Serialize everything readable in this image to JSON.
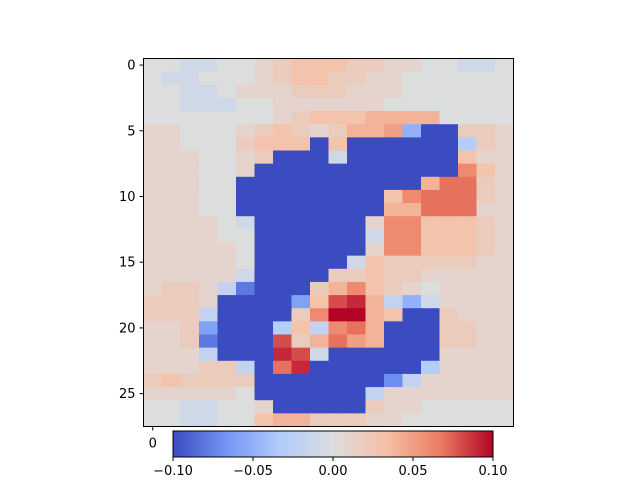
{
  "chart_data": {
    "type": "heatmap",
    "title": "",
    "xlabel": "",
    "ylabel": "",
    "grid": false,
    "rows": 28,
    "cols": 20,
    "y_ticks": [
      0,
      5,
      10,
      15,
      20,
      25
    ],
    "y_tick_labels": [
      "0",
      "5",
      "10",
      "15",
      "20",
      "25"
    ],
    "x_ticks": [
      0
    ],
    "x_tick_labels": [
      "0"
    ],
    "colormap": {
      "name": "coolwarm",
      "vmin": -0.1,
      "vmax": 0.1,
      "stops": [
        "#3b4cc0",
        "#7396f5",
        "#b0cbfc",
        "#dcdddd",
        "#f5c0a6",
        "#eb7d62",
        "#b40426"
      ]
    },
    "colorbar": {
      "orientation": "horizontal",
      "ticks": [
        -0.1,
        -0.05,
        0.0,
        0.05,
        0.1
      ],
      "tick_labels": [
        "−0.10",
        "−0.05",
        "0.00",
        "0.05",
        "0.10"
      ]
    },
    "grid_values": [
      [
        0.0,
        0.0,
        -0.01,
        -0.01,
        0.0,
        0.0,
        0.01,
        0.02,
        0.03,
        0.03,
        0.03,
        0.02,
        0.02,
        0.01,
        0.01,
        0.0,
        0.0,
        -0.01,
        -0.01,
        0.0
      ],
      [
        0.0,
        -0.01,
        -0.01,
        0.0,
        0.0,
        0.0,
        0.01,
        0.02,
        0.03,
        0.03,
        0.02,
        0.02,
        0.01,
        0.01,
        0.0,
        0.0,
        0.0,
        0.0,
        0.0,
        0.0
      ],
      [
        0.0,
        0.0,
        -0.01,
        -0.01,
        0.0,
        0.01,
        0.01,
        0.01,
        0.02,
        0.02,
        0.02,
        0.01,
        0.01,
        0.01,
        0.0,
        0.0,
        0.0,
        0.0,
        0.0,
        0.0
      ],
      [
        0.0,
        0.0,
        -0.01,
        -0.01,
        -0.01,
        0.0,
        0.0,
        0.01,
        0.01,
        0.01,
        0.01,
        0.01,
        0.01,
        0.0,
        0.0,
        0.0,
        0.0,
        0.0,
        0.0,
        0.0
      ],
      [
        0.0,
        0.0,
        0.0,
        0.0,
        0.0,
        0.0,
        0.0,
        0.01,
        0.02,
        0.03,
        0.03,
        0.03,
        0.04,
        0.04,
        0.04,
        0.04,
        0.0,
        0.0,
        0.0,
        0.0
      ],
      [
        0.01,
        0.01,
        0.0,
        0.0,
        0.0,
        0.01,
        0.02,
        0.03,
        0.02,
        0.01,
        0.02,
        0.04,
        0.04,
        0.05,
        -0.05,
        -0.1,
        -0.1,
        0.02,
        0.02,
        0.01
      ],
      [
        0.01,
        0.01,
        0.0,
        0.0,
        0.0,
        0.02,
        0.03,
        0.03,
        0.03,
        -0.1,
        0.03,
        -0.1,
        -0.1,
        -0.1,
        -0.1,
        -0.1,
        -0.1,
        -0.03,
        0.02,
        0.01
      ],
      [
        0.01,
        0.01,
        0.01,
        0.0,
        0.0,
        0.01,
        0.02,
        -0.1,
        -0.1,
        -0.1,
        -0.01,
        -0.1,
        -0.1,
        -0.1,
        -0.1,
        -0.1,
        -0.1,
        0.03,
        0.01,
        0.01
      ],
      [
        0.01,
        0.01,
        0.01,
        0.0,
        0.0,
        0.01,
        -0.1,
        -0.1,
        -0.1,
        -0.1,
        -0.1,
        -0.1,
        -0.1,
        -0.1,
        -0.1,
        -0.1,
        -0.1,
        0.06,
        0.03,
        0.01
      ],
      [
        0.01,
        0.01,
        0.01,
        0.0,
        0.0,
        -0.1,
        -0.1,
        -0.1,
        -0.1,
        -0.1,
        -0.1,
        -0.1,
        -0.1,
        -0.1,
        -0.1,
        0.04,
        0.07,
        0.07,
        0.02,
        0.01
      ],
      [
        0.01,
        0.01,
        0.01,
        0.0,
        0.0,
        -0.1,
        -0.1,
        -0.1,
        -0.1,
        -0.1,
        -0.1,
        -0.1,
        -0.1,
        0.03,
        0.06,
        0.07,
        0.07,
        0.07,
        0.02,
        0.01
      ],
      [
        0.01,
        0.01,
        0.01,
        0.0,
        0.0,
        -0.1,
        -0.1,
        -0.1,
        -0.1,
        -0.1,
        -0.1,
        -0.1,
        -0.1,
        0.04,
        0.04,
        0.07,
        0.07,
        0.07,
        0.01,
        0.01
      ],
      [
        0.01,
        0.01,
        0.01,
        0.01,
        0.0,
        -0.01,
        -0.1,
        -0.1,
        -0.1,
        -0.1,
        -0.1,
        -0.1,
        0.01,
        0.06,
        0.06,
        0.03,
        0.03,
        0.03,
        0.02,
        0.01
      ],
      [
        0.01,
        0.01,
        0.01,
        0.01,
        0.0,
        0.0,
        -0.1,
        -0.1,
        -0.1,
        -0.1,
        -0.1,
        -0.1,
        -0.01,
        0.06,
        0.06,
        0.03,
        0.03,
        0.03,
        0.02,
        0.01
      ],
      [
        0.01,
        0.01,
        0.01,
        0.01,
        0.01,
        0.0,
        -0.1,
        -0.1,
        -0.1,
        -0.1,
        -0.1,
        -0.1,
        0.01,
        0.06,
        0.06,
        0.03,
        0.03,
        0.03,
        0.02,
        0.01
      ],
      [
        0.01,
        0.01,
        0.01,
        0.01,
        0.01,
        0.0,
        -0.1,
        -0.1,
        -0.1,
        -0.1,
        -0.1,
        -0.01,
        0.03,
        0.02,
        0.02,
        0.02,
        0.02,
        0.02,
        0.01,
        0.01
      ],
      [
        0.01,
        0.01,
        0.01,
        0.01,
        0.01,
        -0.01,
        -0.1,
        -0.1,
        -0.1,
        -0.1,
        0.02,
        0.02,
        0.03,
        0.02,
        0.02,
        0.01,
        0.01,
        0.01,
        0.01,
        0.01
      ],
      [
        0.01,
        0.02,
        0.02,
        0.01,
        -0.02,
        -0.08,
        -0.1,
        -0.1,
        -0.1,
        0.02,
        0.04,
        0.06,
        0.03,
        0.02,
        0.01,
        0.0,
        0.01,
        0.01,
        0.01,
        0.01
      ],
      [
        0.02,
        0.02,
        0.02,
        0.01,
        -0.1,
        -0.1,
        -0.1,
        -0.1,
        -0.06,
        0.03,
        0.08,
        0.09,
        0.04,
        -0.02,
        -0.05,
        -0.01,
        0.01,
        0.01,
        0.01,
        0.01
      ],
      [
        0.02,
        0.02,
        0.02,
        -0.02,
        -0.1,
        -0.1,
        -0.1,
        -0.1,
        0.02,
        0.06,
        0.1,
        0.1,
        0.04,
        0.03,
        -0.1,
        -0.1,
        0.02,
        0.01,
        0.01,
        0.01
      ],
      [
        0.01,
        0.01,
        0.02,
        -0.06,
        -0.1,
        -0.1,
        -0.1,
        -0.03,
        0.03,
        -0.02,
        0.06,
        0.07,
        0.04,
        -0.1,
        -0.1,
        -0.1,
        0.02,
        0.02,
        0.01,
        0.01
      ],
      [
        0.01,
        0.01,
        0.02,
        -0.08,
        -0.1,
        -0.1,
        -0.1,
        0.08,
        0.02,
        0.04,
        0.07,
        0.05,
        0.04,
        -0.1,
        -0.1,
        -0.1,
        0.02,
        0.02,
        0.01,
        0.01
      ],
      [
        0.01,
        0.01,
        0.01,
        -0.02,
        -0.1,
        -0.1,
        -0.1,
        0.09,
        0.08,
        -0.01,
        -0.1,
        -0.1,
        -0.1,
        -0.1,
        -0.1,
        -0.1,
        0.01,
        0.01,
        0.01,
        0.01
      ],
      [
        0.01,
        0.01,
        0.01,
        0.02,
        0.02,
        -0.02,
        -0.1,
        0.07,
        0.09,
        -0.1,
        -0.1,
        -0.1,
        -0.1,
        -0.1,
        -0.1,
        -0.03,
        0.01,
        0.01,
        0.01,
        0.01
      ],
      [
        0.02,
        0.03,
        0.02,
        0.02,
        0.02,
        0.02,
        -0.1,
        -0.1,
        -0.1,
        -0.1,
        -0.1,
        -0.1,
        -0.1,
        -0.07,
        -0.02,
        0.01,
        0.01,
        0.01,
        0.01,
        0.01
      ],
      [
        0.01,
        0.01,
        0.01,
        0.01,
        0.01,
        0.0,
        -0.1,
        -0.1,
        -0.1,
        -0.1,
        -0.1,
        -0.1,
        -0.02,
        0.01,
        0.01,
        0.01,
        0.01,
        0.01,
        0.01,
        0.01
      ],
      [
        0.0,
        0.0,
        -0.01,
        -0.01,
        0.0,
        0.0,
        0.01,
        -0.1,
        -0.1,
        -0.1,
        -0.1,
        -0.1,
        0.02,
        0.01,
        0.01,
        0.0,
        0.0,
        0.0,
        0.0,
        0.0
      ],
      [
        0.0,
        0.0,
        -0.01,
        -0.01,
        0.0,
        0.0,
        0.03,
        0.04,
        0.04,
        0.02,
        0.02,
        0.02,
        0.01,
        0.01,
        0.0,
        0.0,
        0.0,
        0.0,
        0.0,
        0.0
      ]
    ]
  }
}
